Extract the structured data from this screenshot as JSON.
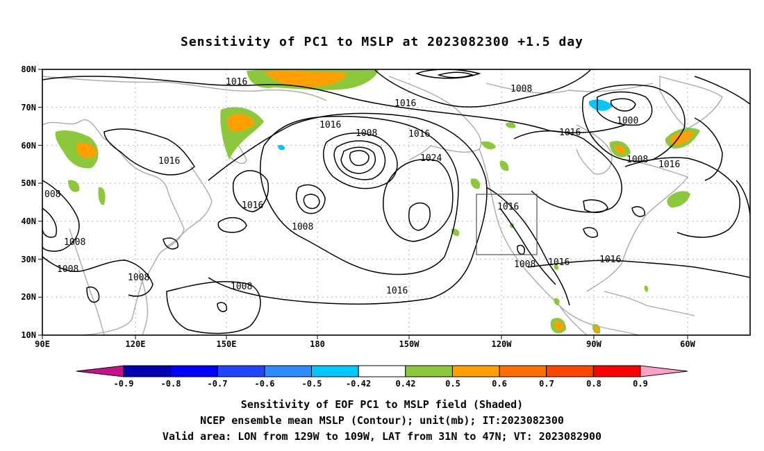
{
  "title": "Sensitivity of PC1 to MSLP at 2023082300 +1.5 day",
  "map": {
    "lat_labels": [
      "80N",
      "70N",
      "60N",
      "50N",
      "40N",
      "30N",
      "20N",
      "10N"
    ],
    "lon_labels": [
      "90E",
      "120E",
      "150E",
      "180",
      "150W",
      "120W",
      "90W",
      "60W"
    ],
    "contour_labels": [
      {
        "text": "1016"
      },
      {
        "text": "1008"
      },
      {
        "text": "1016"
      },
      {
        "text": "1016"
      },
      {
        "text": "1008"
      },
      {
        "text": "1016"
      },
      {
        "text": "1016"
      },
      {
        "text": "1000"
      },
      {
        "text": "1024"
      },
      {
        "text": "1016"
      },
      {
        "text": "1016"
      },
      {
        "text": "1008"
      },
      {
        "text": "1016"
      },
      {
        "text": "008"
      },
      {
        "text": "1008"
      },
      {
        "text": "1008"
      },
      {
        "text": "1008"
      },
      {
        "text": "1016"
      },
      {
        "text": "1008"
      },
      {
        "text": "1016"
      },
      {
        "text": "1016"
      },
      {
        "text": "1008"
      },
      {
        "text": "1016"
      },
      {
        "text": "1008"
      }
    ],
    "valid_box": {
      "lon_from": "129W",
      "lon_to": "109W",
      "lat_from": "31N",
      "lat_to": "47N"
    }
  },
  "colorbar": {
    "labels": [
      "-0.9",
      "-0.8",
      "-0.7",
      "-0.6",
      "-0.5",
      "-0.42",
      "0.42",
      "0.5",
      "0.6",
      "0.7",
      "0.8",
      "0.9"
    ],
    "colors": [
      "#0000b0",
      "#0000ff",
      "#1e46ff",
      "#2f8cff",
      "#00c8ff",
      "#ffffff",
      "#8cc83c",
      "#ff9f00",
      "#ff6e00",
      "#ff4600",
      "#ff0000"
    ],
    "low_end_color": "#c8108c",
    "high_end_color": "#ffa0c8"
  },
  "captions": {
    "line1": "Sensitivity of EOF PC1 to MSLP field (Shaded)",
    "line2": "NCEP ensemble mean MSLP (Contour); unit(mb); IT:2023082300",
    "line3": "Valid area: LON from 129W to 109W, LAT from 31N to 47N; VT: 2023082900"
  }
}
